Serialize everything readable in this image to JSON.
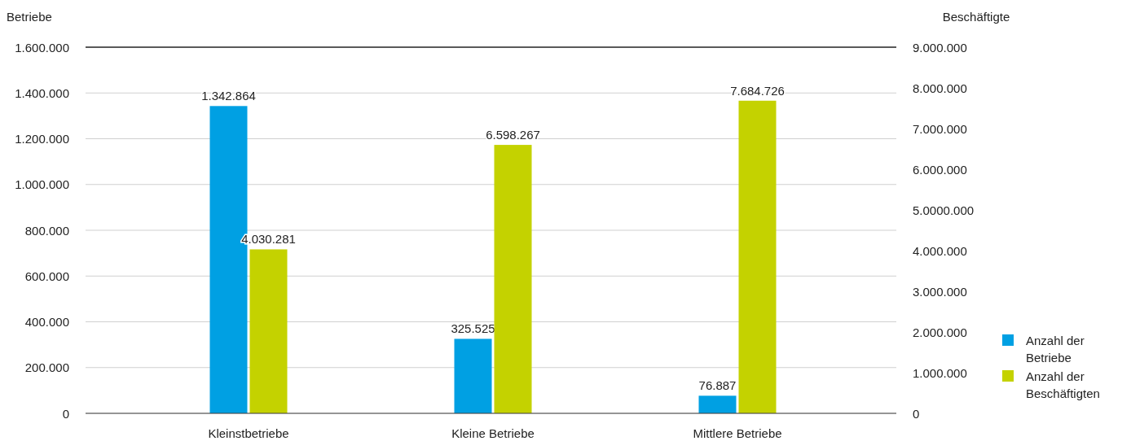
{
  "chart_data": {
    "type": "bar",
    "ylabel": "Betriebe",
    "y2label": "Beschäftigte",
    "categories": [
      "Kleinstbetriebe",
      "Kleine Betriebe",
      "Mittlere Betriebe"
    ],
    "series": [
      {
        "name": "Anzahl der Betriebe",
        "color": "#00a0e3",
        "values": [
          1342864,
          325525,
          76887
        ],
        "value_labels": [
          "1.342.864",
          "325.525",
          "76.887"
        ]
      },
      {
        "name": "Anzahl der Beschäftigten",
        "color": "#c4d200",
        "axis": "y2",
        "values": [
          4030281,
          6598267,
          7684726
        ],
        "value_labels": [
          "4.030.281",
          "6.598.267",
          "7.684.726"
        ]
      }
    ],
    "ylim": [
      0,
      1600000
    ],
    "yticks": [
      {
        "value": 0,
        "label": "0"
      },
      {
        "value": 200000,
        "label": "200.000"
      },
      {
        "value": 400000,
        "label": "400.000"
      },
      {
        "value": 600000,
        "label": "600.000"
      },
      {
        "value": 800000,
        "label": "800.000"
      },
      {
        "value": 1000000,
        "label": "1.000.000"
      },
      {
        "value": 1200000,
        "label": "1.200.000"
      },
      {
        "value": 1400000,
        "label": "1.400.000"
      },
      {
        "value": 1600000,
        "label": "1.600.000"
      }
    ],
    "y2lim": [
      0,
      9000000
    ],
    "y2ticks": [
      {
        "value": 0,
        "label": "0"
      },
      {
        "value": 1000000,
        "label": "1.000.000"
      },
      {
        "value": 2000000,
        "label": "2.000.000"
      },
      {
        "value": 3000000,
        "label": "3.000.000"
      },
      {
        "value": 4000000,
        "label": "4.000.000"
      },
      {
        "value": 5000000,
        "label": "5.0000.000"
      },
      {
        "value": 6000000,
        "label": "6.000.000"
      },
      {
        "value": 7000000,
        "label": "7.000.000"
      },
      {
        "value": 8000000,
        "label": "8.000.000"
      },
      {
        "value": 9000000,
        "label": "9.000.000"
      }
    ],
    "grid": "y",
    "legend": "right"
  }
}
